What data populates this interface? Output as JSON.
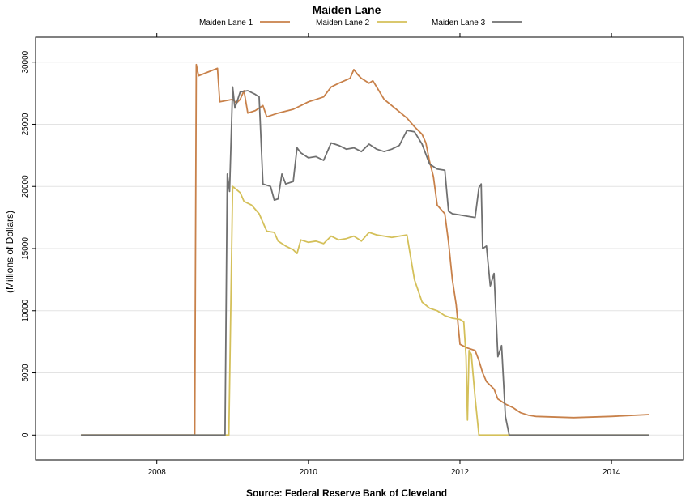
{
  "chart_data": {
    "type": "line",
    "title": "Maiden Lane",
    "source": "Source: Federal Reserve Bank of Cleveland",
    "ylabel": "(Millions of Dollars)",
    "xlabel": "",
    "xlim": [
      2006.4,
      2014.95
    ],
    "ylim": [
      -2000,
      32000
    ],
    "x_ticks": [
      2008,
      2010,
      2012,
      2014
    ],
    "y_ticks": [
      0,
      5000,
      10000,
      15000,
      20000,
      25000,
      30000
    ],
    "grid": true,
    "legend_position": "top",
    "series": [
      {
        "name": "Maiden Lane 1",
        "color": "#c8814a",
        "points": [
          [
            2007.0,
            0
          ],
          [
            2008.5,
            0
          ],
          [
            2008.52,
            29800
          ],
          [
            2008.55,
            28900
          ],
          [
            2008.8,
            29500
          ],
          [
            2008.83,
            26800
          ],
          [
            2009.0,
            27000
          ],
          [
            2009.05,
            26700
          ],
          [
            2009.1,
            27000
          ],
          [
            2009.15,
            27700
          ],
          [
            2009.2,
            25900
          ],
          [
            2009.3,
            26100
          ],
          [
            2009.4,
            26500
          ],
          [
            2009.45,
            25600
          ],
          [
            2009.6,
            25900
          ],
          [
            2009.8,
            26200
          ],
          [
            2009.9,
            26500
          ],
          [
            2010.0,
            26800
          ],
          [
            2010.1,
            27000
          ],
          [
            2010.2,
            27200
          ],
          [
            2010.3,
            28000
          ],
          [
            2010.4,
            28300
          ],
          [
            2010.55,
            28700
          ],
          [
            2010.6,
            29400
          ],
          [
            2010.65,
            29000
          ],
          [
            2010.7,
            28700
          ],
          [
            2010.8,
            28300
          ],
          [
            2010.85,
            28500
          ],
          [
            2010.9,
            28000
          ],
          [
            2011.0,
            27000
          ],
          [
            2011.1,
            26500
          ],
          [
            2011.2,
            26000
          ],
          [
            2011.3,
            25500
          ],
          [
            2011.4,
            24800
          ],
          [
            2011.5,
            24200
          ],
          [
            2011.55,
            23500
          ],
          [
            2011.6,
            22000
          ],
          [
            2011.65,
            20800
          ],
          [
            2011.7,
            18500
          ],
          [
            2011.8,
            17800
          ],
          [
            2011.85,
            15500
          ],
          [
            2011.9,
            12500
          ],
          [
            2011.95,
            10500
          ],
          [
            2012.0,
            7300
          ],
          [
            2012.1,
            7000
          ],
          [
            2012.2,
            6800
          ],
          [
            2012.25,
            6000
          ],
          [
            2012.3,
            5000
          ],
          [
            2012.35,
            4300
          ],
          [
            2012.4,
            4000
          ],
          [
            2012.45,
            3700
          ],
          [
            2012.5,
            2900
          ],
          [
            2012.6,
            2500
          ],
          [
            2012.7,
            2200
          ],
          [
            2012.8,
            1800
          ],
          [
            2012.9,
            1600
          ],
          [
            2013.0,
            1500
          ],
          [
            2013.5,
            1400
          ],
          [
            2014.0,
            1500
          ],
          [
            2014.5,
            1650
          ]
        ]
      },
      {
        "name": "Maiden Lane 2",
        "color": "#d4c05a",
        "points": [
          [
            2007.0,
            0
          ],
          [
            2008.95,
            0
          ],
          [
            2009.0,
            20000
          ],
          [
            2009.1,
            19500
          ],
          [
            2009.15,
            18800
          ],
          [
            2009.25,
            18500
          ],
          [
            2009.35,
            17800
          ],
          [
            2009.45,
            16400
          ],
          [
            2009.55,
            16300
          ],
          [
            2009.6,
            15600
          ],
          [
            2009.7,
            15200
          ],
          [
            2009.8,
            14900
          ],
          [
            2009.85,
            14600
          ],
          [
            2009.9,
            15700
          ],
          [
            2010.0,
            15500
          ],
          [
            2010.1,
            15600
          ],
          [
            2010.2,
            15400
          ],
          [
            2010.3,
            16000
          ],
          [
            2010.4,
            15700
          ],
          [
            2010.5,
            15800
          ],
          [
            2010.6,
            16000
          ],
          [
            2010.7,
            15600
          ],
          [
            2010.8,
            16300
          ],
          [
            2010.9,
            16100
          ],
          [
            2011.0,
            16000
          ],
          [
            2011.1,
            15900
          ],
          [
            2011.2,
            16000
          ],
          [
            2011.3,
            16100
          ],
          [
            2011.4,
            12500
          ],
          [
            2011.5,
            10700
          ],
          [
            2011.6,
            10200
          ],
          [
            2011.7,
            10000
          ],
          [
            2011.8,
            9600
          ],
          [
            2011.9,
            9400
          ],
          [
            2012.0,
            9300
          ],
          [
            2012.05,
            9100
          ],
          [
            2012.08,
            6300
          ],
          [
            2012.1,
            1200
          ],
          [
            2012.12,
            6800
          ],
          [
            2012.15,
            6500
          ],
          [
            2012.2,
            3000
          ],
          [
            2012.25,
            0
          ],
          [
            2014.5,
            0
          ]
        ]
      },
      {
        "name": "Maiden Lane 3",
        "color": "#707070",
        "points": [
          [
            2007.0,
            0
          ],
          [
            2008.9,
            0
          ],
          [
            2008.93,
            21000
          ],
          [
            2008.96,
            19600
          ],
          [
            2009.0,
            28000
          ],
          [
            2009.03,
            26300
          ],
          [
            2009.1,
            27600
          ],
          [
            2009.2,
            27700
          ],
          [
            2009.3,
            27400
          ],
          [
            2009.35,
            27200
          ],
          [
            2009.4,
            20200
          ],
          [
            2009.5,
            20000
          ],
          [
            2009.55,
            18900
          ],
          [
            2009.6,
            19000
          ],
          [
            2009.65,
            21000
          ],
          [
            2009.7,
            20200
          ],
          [
            2009.8,
            20400
          ],
          [
            2009.85,
            23100
          ],
          [
            2009.9,
            22700
          ],
          [
            2010.0,
            22300
          ],
          [
            2010.1,
            22400
          ],
          [
            2010.2,
            22100
          ],
          [
            2010.3,
            23500
          ],
          [
            2010.4,
            23300
          ],
          [
            2010.5,
            23000
          ],
          [
            2010.6,
            23100
          ],
          [
            2010.7,
            22800
          ],
          [
            2010.8,
            23400
          ],
          [
            2010.9,
            23000
          ],
          [
            2011.0,
            22800
          ],
          [
            2011.1,
            23000
          ],
          [
            2011.2,
            23300
          ],
          [
            2011.3,
            24500
          ],
          [
            2011.4,
            24400
          ],
          [
            2011.5,
            23400
          ],
          [
            2011.6,
            21800
          ],
          [
            2011.7,
            21400
          ],
          [
            2011.8,
            21300
          ],
          [
            2011.85,
            18000
          ],
          [
            2011.9,
            17800
          ],
          [
            2012.0,
            17700
          ],
          [
            2012.1,
            17600
          ],
          [
            2012.2,
            17500
          ],
          [
            2012.25,
            19900
          ],
          [
            2012.28,
            20200
          ],
          [
            2012.3,
            15000
          ],
          [
            2012.35,
            15200
          ],
          [
            2012.4,
            12000
          ],
          [
            2012.45,
            13000
          ],
          [
            2012.5,
            6300
          ],
          [
            2012.55,
            7200
          ],
          [
            2012.6,
            1500
          ],
          [
            2012.65,
            0
          ],
          [
            2014.5,
            0
          ]
        ]
      }
    ]
  }
}
